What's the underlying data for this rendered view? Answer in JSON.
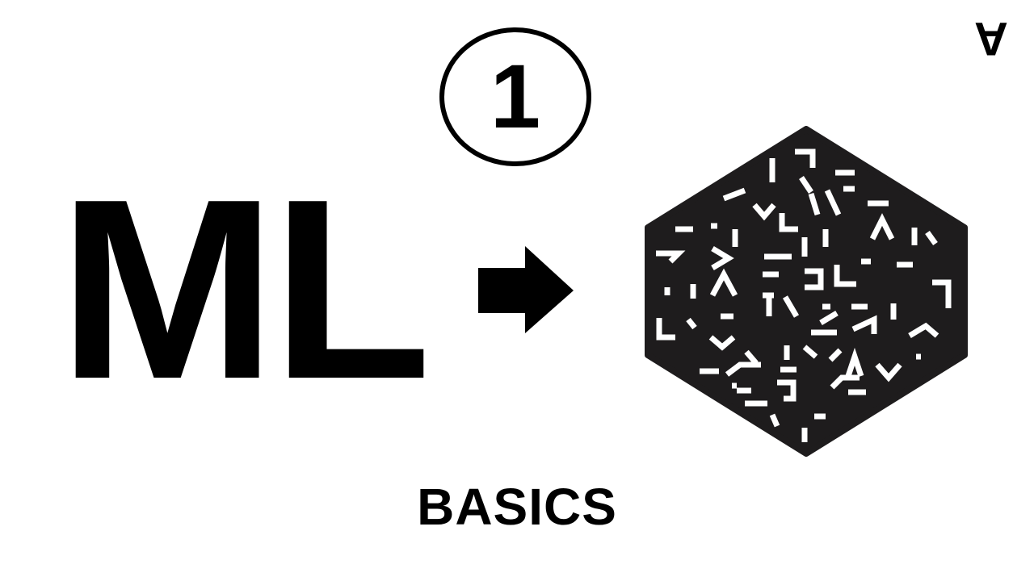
{
  "badge": {
    "number": "1"
  },
  "title": "ML",
  "subtitle": "BASICS",
  "icons": {
    "arrow": "right-arrow-icon",
    "hexagon": "glyph-hexagon-icon",
    "corner": "upside-down-a-logo"
  },
  "colors": {
    "foreground": "#000000",
    "background": "#ffffff"
  }
}
